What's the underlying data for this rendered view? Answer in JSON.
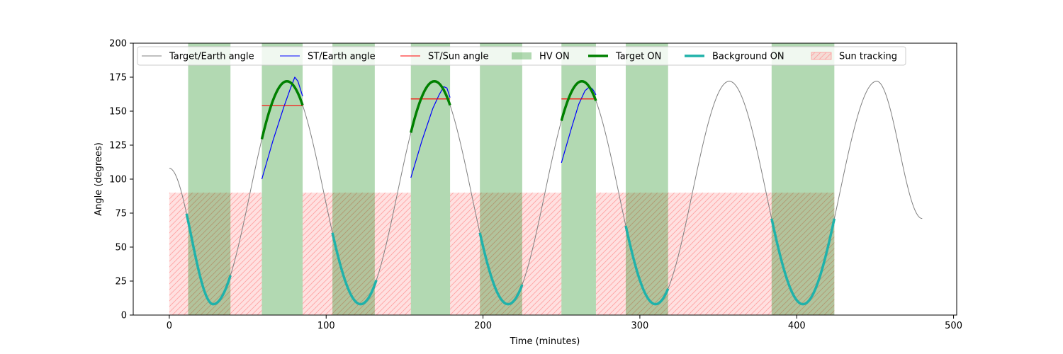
{
  "chart_data": {
    "type": "line",
    "title": "",
    "xlabel": "Time (minutes)",
    "ylabel": "Angle (degrees)",
    "xlim": [
      -23,
      502
    ],
    "ylim": [
      0,
      200
    ],
    "xticks": [
      0,
      100,
      200,
      300,
      400,
      500
    ],
    "yticks": [
      0,
      25,
      50,
      75,
      100,
      125,
      150,
      175,
      200
    ],
    "grid": false,
    "legend_position": "top",
    "legend": [
      {
        "label": "Target/Earth angle",
        "kind": "line",
        "color": "#808080",
        "width": 1
      },
      {
        "label": "ST/Earth angle",
        "kind": "line",
        "color": "#0000ff",
        "width": 1
      },
      {
        "label": "ST/Sun angle",
        "kind": "line",
        "color": "#ff0000",
        "width": 1
      },
      {
        "label": "HV ON",
        "kind": "patch",
        "color": "#008000",
        "opacity": 0.3
      },
      {
        "label": "Target ON",
        "kind": "line",
        "color": "#008000",
        "width": 3.5
      },
      {
        "label": "Background ON",
        "kind": "line",
        "color": "#20b2aa",
        "width": 3.5
      },
      {
        "label": "Sun tracking",
        "kind": "hatch",
        "color": "#ff9999"
      }
    ],
    "target_earth_angle": {
      "name": "Target/Earth angle",
      "color": "#808080",
      "start_minute": 0,
      "end_minute": 480,
      "extrema": [
        {
          "t": 0,
          "angle": 108
        },
        {
          "t": 28,
          "angle": 8
        },
        {
          "t": 75,
          "angle": 172
        },
        {
          "t": 122,
          "angle": 8
        },
        {
          "t": 169,
          "angle": 172
        },
        {
          "t": 216,
          "angle": 8
        },
        {
          "t": 263,
          "angle": 172
        },
        {
          "t": 310,
          "angle": 8
        },
        {
          "t": 357,
          "angle": 172
        },
        {
          "t": 404,
          "angle": 8
        },
        {
          "t": 451,
          "angle": 172
        },
        {
          "t": 480,
          "angle": 71
        }
      ]
    },
    "st_earth_angle": {
      "name": "ST/Earth angle",
      "color": "#0000ff",
      "segments": [
        {
          "points": [
            [
              59,
              100
            ],
            [
              66,
              128
            ],
            [
              73,
              153
            ],
            [
              77,
              166
            ],
            [
              80,
              175
            ],
            [
              82,
              172
            ],
            [
              85,
              161
            ]
          ]
        },
        {
          "points": [
            [
              154,
              101
            ],
            [
              161,
              128
            ],
            [
              168,
              152
            ],
            [
              172,
              162
            ],
            [
              175,
              168
            ],
            [
              177,
              167
            ],
            [
              179,
              160
            ]
          ]
        },
        {
          "points": [
            [
              250,
              112
            ],
            [
              256,
              136
            ],
            [
              261,
              155
            ],
            [
              265,
              165
            ],
            [
              268,
              168
            ],
            [
              270,
              166
            ],
            [
              272,
              162
            ]
          ]
        }
      ]
    },
    "st_sun_angle": {
      "name": "ST/Sun angle",
      "color": "#ff0000",
      "segments": [
        {
          "x": [
            59,
            85
          ],
          "angle": 154
        },
        {
          "x": [
            154,
            179
          ],
          "angle": 159
        },
        {
          "x": [
            250,
            272
          ],
          "angle": 159
        }
      ]
    },
    "hv_on": [
      [
        12,
        39
      ],
      [
        59,
        85
      ],
      [
        104,
        131
      ],
      [
        154,
        179
      ],
      [
        198,
        225
      ],
      [
        250,
        272
      ],
      [
        291,
        318
      ],
      [
        384,
        424
      ]
    ],
    "target_on": [
      [
        59,
        85
      ],
      [
        154,
        179
      ],
      [
        250,
        272
      ]
    ],
    "background_on": [
      [
        11,
        39
      ],
      [
        104,
        132
      ],
      [
        198,
        225
      ],
      [
        291,
        318
      ],
      [
        384,
        424
      ]
    ],
    "sun_tracking": [
      {
        "x": [
          0,
          59
        ],
        "angle": 90
      },
      {
        "x": [
          85,
          154
        ],
        "angle": 90
      },
      {
        "x": [
          179,
          250
        ],
        "angle": 90
      },
      {
        "x": [
          272,
          424
        ],
        "angle": 90
      }
    ]
  }
}
